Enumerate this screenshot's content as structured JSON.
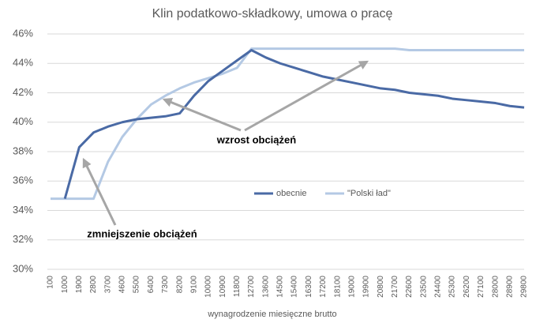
{
  "chart_data": {
    "type": "line",
    "title": "Klin podatkowo-składkowy, umowa o pracę",
    "x_label": "wynagrodzenie miesięczne brutto",
    "annotations": [
      "wzrost obciążeń",
      "zmniejszenie obciążeń"
    ],
    "categories": [
      "100",
      "1000",
      "1900",
      "2800",
      "3700",
      "4600",
      "5500",
      "6400",
      "7300",
      "8200",
      "9100",
      "10000",
      "10900",
      "11800",
      "12700",
      "13600",
      "14500",
      "15400",
      "16300",
      "17200",
      "18100",
      "19000",
      "19900",
      "20800",
      "21700",
      "22600",
      "23500",
      "24400",
      "25300",
      "26200",
      "27100",
      "28000",
      "28900",
      "29800"
    ],
    "series": [
      {
        "name": "obecnie",
        "color": "#4a6aa5",
        "values": [
          null,
          34.8,
          38.3,
          39.3,
          39.7,
          40.0,
          40.2,
          40.3,
          40.4,
          40.6,
          41.8,
          42.8,
          43.5,
          44.2,
          44.9,
          44.4,
          44.0,
          43.7,
          43.4,
          43.1,
          42.9,
          42.7,
          42.5,
          42.3,
          42.2,
          42.0,
          41.9,
          41.8,
          41.6,
          41.5,
          41.4,
          41.3,
          41.1,
          41.0
        ]
      },
      {
        "name": "\"Polski ład\"",
        "color": "#b4c9e4",
        "values": [
          34.8,
          34.8,
          34.8,
          34.8,
          37.3,
          39.0,
          40.2,
          41.2,
          41.8,
          42.3,
          42.7,
          43.0,
          43.3,
          43.7,
          45.0,
          45.0,
          45.0,
          45.0,
          45.0,
          45.0,
          45.0,
          45.0,
          45.0,
          45.0,
          45.0,
          44.9,
          44.9,
          44.9,
          44.9,
          44.9,
          44.9,
          44.9,
          44.9,
          44.9
        ]
      }
    ],
    "ylim": [
      30,
      46
    ],
    "yticks": [
      {
        "value": 30,
        "label": "30%"
      },
      {
        "value": 32,
        "label": "32%"
      },
      {
        "value": 34,
        "label": "34%"
      },
      {
        "value": 36,
        "label": "36%"
      },
      {
        "value": 38,
        "label": "38%"
      },
      {
        "value": 40,
        "label": "40%"
      },
      {
        "value": 42,
        "label": "42%"
      },
      {
        "value": 44,
        "label": "44%"
      },
      {
        "value": 46,
        "label": "46%"
      }
    ],
    "grid": true
  }
}
